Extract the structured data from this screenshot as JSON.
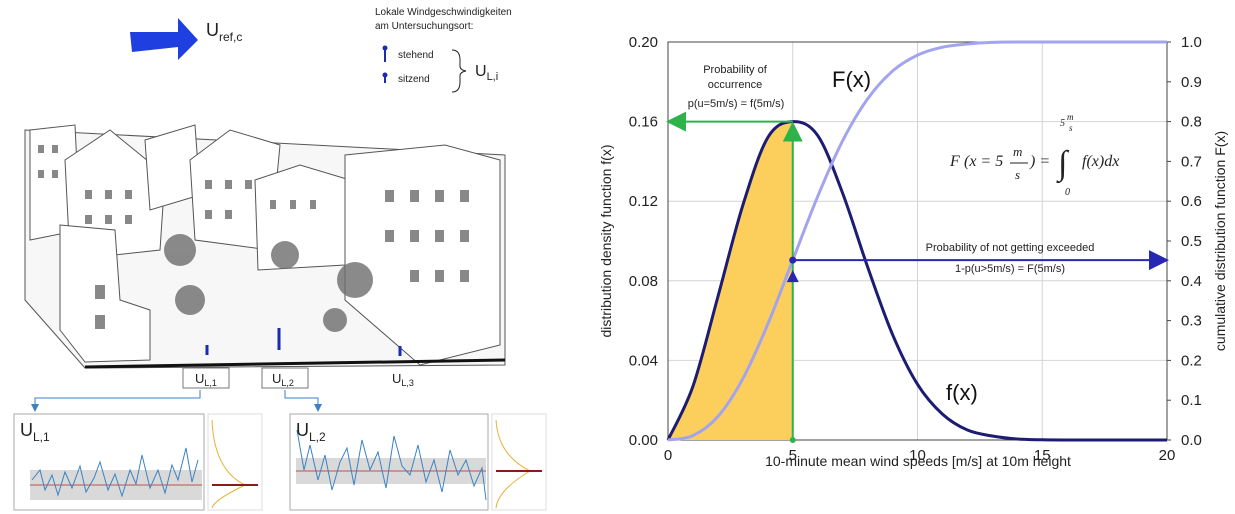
{
  "illustration": {
    "reference_wind": {
      "main": "U",
      "sub": "ref,c"
    },
    "legend_title": [
      "Lokale Windgeschwindigkeiten",
      "am Untersuchungsort:"
    ],
    "legend_items": [
      "stehend",
      "sitzend"
    ],
    "local_wind": {
      "main": "U",
      "sub": "L,i"
    },
    "locations": [
      {
        "main": "U",
        "sub": "L,1"
      },
      {
        "main": "U",
        "sub": "L,2"
      },
      {
        "main": "U",
        "sub": "L,3"
      }
    ],
    "plots": [
      {
        "main": "U",
        "sub": "L,1"
      },
      {
        "main": "U",
        "sub": "L,2"
      }
    ]
  },
  "chart_data": {
    "type": "line",
    "x": [
      0,
      1,
      2,
      3,
      4,
      5,
      6,
      7,
      8,
      9,
      10,
      11,
      12,
      13,
      14,
      15,
      16,
      17,
      18,
      19,
      20
    ],
    "series": [
      {
        "name": "f(x)",
        "color": "#1c1c72",
        "values": [
          0,
          0.027,
          0.072,
          0.118,
          0.152,
          0.16,
          0.153,
          0.124,
          0.087,
          0.053,
          0.028,
          0.013,
          0.005,
          0.002,
          0.0005,
          0.0001,
          0,
          0,
          0,
          0,
          0
        ]
      },
      {
        "name": "F(x)",
        "color": "#a3a3ee",
        "axis": "y2",
        "values": [
          0,
          0.011,
          0.059,
          0.154,
          0.291,
          0.452,
          0.612,
          0.752,
          0.857,
          0.927,
          0.967,
          0.987,
          0.995,
          0.999,
          1,
          1,
          1,
          1,
          1,
          1,
          1
        ]
      }
    ],
    "xlim": [
      0,
      20
    ],
    "xticks": [
      0,
      5,
      10,
      15,
      20
    ],
    "ylim": [
      0,
      0.2
    ],
    "yticks": [
      {
        "value": 0,
        "label": "0.00"
      },
      {
        "value": 0.04,
        "label": "0.04"
      },
      {
        "value": 0.08,
        "label": "0.08"
      },
      {
        "value": 0.12,
        "label": "0.12"
      },
      {
        "value": 0.16,
        "label": "0.16"
      },
      {
        "value": 0.2,
        "label": "0.20"
      }
    ],
    "y2lim": [
      0,
      1
    ],
    "y2ticks": [
      {
        "value": 0,
        "label": "0.0"
      },
      {
        "value": 0.1,
        "label": "0.1"
      },
      {
        "value": 0.2,
        "label": "0.2"
      },
      {
        "value": 0.3,
        "label": "0.3"
      },
      {
        "value": 0.4,
        "label": "0.4"
      },
      {
        "value": 0.5,
        "label": "0.5"
      },
      {
        "value": 0.6,
        "label": "0.6"
      },
      {
        "value": 0.7,
        "label": "0.7"
      },
      {
        "value": 0.8,
        "label": "0.8"
      },
      {
        "value": 0.9,
        "label": "0.9"
      },
      {
        "value": 1,
        "label": "1.0"
      }
    ],
    "xlabel": "10-minute mean wind speeds [m/s] at 10m height",
    "ylabel": "distribution density function f(x)",
    "y2label": "cumulative distribution function F(x)",
    "grid": true,
    "fill_color": "#fccf5c",
    "fill_to_index": 5,
    "annotations": {
      "occurrence_title": [
        "Probability of",
        "occurrence"
      ],
      "occurrence_formula": "p(u=5m/s) = f(5m/s)",
      "exceed_title": "Probability of not getting exceeded",
      "exceed_formula": "1-p(u>5m/s) = F(5m/s)",
      "formula": [
        "F",
        "(x = 5",
        "m",
        "s",
        ") =",
        "∫",
        "5",
        "m",
        "s",
        "0",
        "f(x)dx"
      ]
    }
  }
}
